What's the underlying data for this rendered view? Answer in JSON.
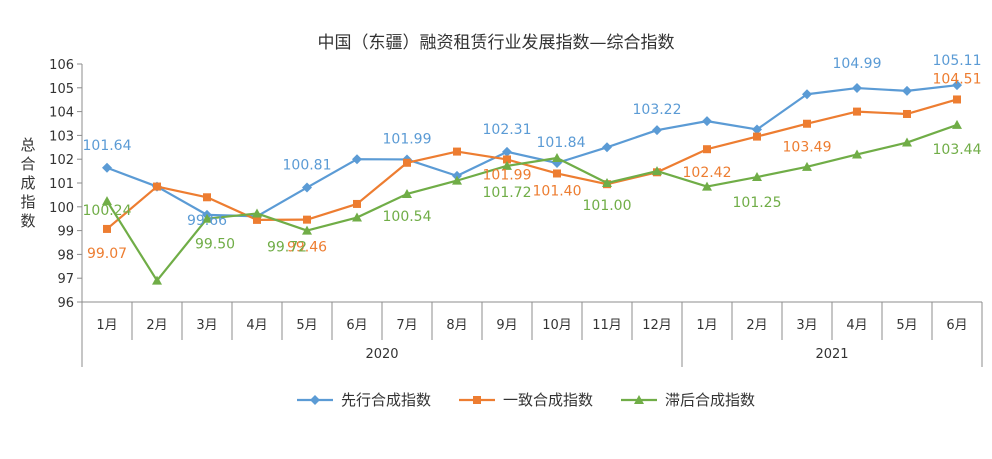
{
  "chart_data": {
    "type": "line",
    "title": "中国（东疆）融资租赁行业发展指数—综合指数",
    "ylabel": "总合成指数",
    "ylim": [
      96,
      106
    ],
    "yticks": [
      "96",
      "97",
      "98",
      "99",
      "100",
      "101",
      "102",
      "103",
      "104",
      "105",
      "106"
    ],
    "categories": [
      "1月",
      "2月",
      "3月",
      "4月",
      "5月",
      "6月",
      "7月",
      "8月",
      "9月",
      "10月",
      "11月",
      "12月",
      "1月",
      "2月",
      "3月",
      "4月",
      "5月",
      "6月"
    ],
    "year_groups": [
      {
        "label": "2020",
        "start": 0,
        "end": 11
      },
      {
        "label": "2021",
        "start": 12,
        "end": 17
      }
    ],
    "grid": false,
    "legend_position": "bottom",
    "series": [
      {
        "name": "先行合成指数",
        "color": "#5B9BD5",
        "marker": "diamond",
        "values": [
          101.64,
          100.85,
          99.66,
          99.6,
          100.81,
          102.0,
          101.99,
          101.3,
          102.31,
          101.84,
          102.5,
          103.22,
          103.6,
          103.25,
          104.73,
          104.99,
          104.87,
          105.11
        ],
        "labels": [
          {
            "index": 0,
            "text": "101.64"
          },
          {
            "index": 2,
            "text": "99.66"
          },
          {
            "index": 4,
            "text": "100.81"
          },
          {
            "index": 6,
            "text": "101.99"
          },
          {
            "index": 8,
            "text": "102.31"
          },
          {
            "index": 9,
            "text": "101.84"
          },
          {
            "index": 11,
            "text": "103.22"
          },
          {
            "index": 15,
            "text": "104.99"
          },
          {
            "index": 17,
            "text": "105.11"
          }
        ]
      },
      {
        "name": "一致合成指数",
        "color": "#ED7D31",
        "marker": "square",
        "values": [
          99.07,
          100.85,
          100.4,
          99.45,
          99.46,
          100.12,
          101.85,
          102.32,
          101.99,
          101.4,
          100.95,
          101.45,
          102.42,
          102.95,
          103.49,
          104.0,
          103.9,
          104.51
        ],
        "labels": [
          {
            "index": 0,
            "text": "99.07"
          },
          {
            "index": 4,
            "text": "99.46"
          },
          {
            "index": 8,
            "text": "101.99"
          },
          {
            "index": 9,
            "text": "101.40"
          },
          {
            "index": 12,
            "text": "102.42"
          },
          {
            "index": 14,
            "text": "103.49"
          },
          {
            "index": 17,
            "text": "104.51"
          }
        ]
      },
      {
        "name": "滞后合成指数",
        "color": "#70AD47",
        "marker": "triangle",
        "values": [
          100.24,
          96.9,
          99.5,
          99.72,
          99.0,
          99.55,
          100.54,
          101.1,
          101.72,
          102.05,
          101.0,
          101.5,
          100.85,
          101.25,
          101.68,
          102.2,
          102.7,
          103.44
        ],
        "labels": [
          {
            "index": 0,
            "text": "100.24"
          },
          {
            "index": 2,
            "text": "99.50"
          },
          {
            "index": 3,
            "text": "99.72"
          },
          {
            "index": 6,
            "text": "100.54"
          },
          {
            "index": 8,
            "text": "101.72"
          },
          {
            "index": 10,
            "text": "101.00"
          },
          {
            "index": 13,
            "text": "101.25"
          },
          {
            "index": 17,
            "text": "103.44"
          }
        ]
      }
    ]
  }
}
